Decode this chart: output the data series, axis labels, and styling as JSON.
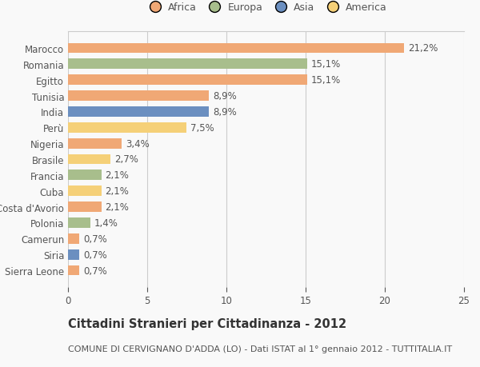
{
  "countries": [
    "Sierra Leone",
    "Siria",
    "Camerun",
    "Polonia",
    "Costa d'Avorio",
    "Cuba",
    "Francia",
    "Brasile",
    "Nigeria",
    "Perù",
    "India",
    "Tunisia",
    "Egitto",
    "Romania",
    "Marocco"
  ],
  "values": [
    0.7,
    0.7,
    0.7,
    1.4,
    2.1,
    2.1,
    2.1,
    2.7,
    3.4,
    7.5,
    8.9,
    8.9,
    15.1,
    15.1,
    21.2
  ],
  "labels": [
    "0,7%",
    "0,7%",
    "0,7%",
    "1,4%",
    "2,1%",
    "2,1%",
    "2,1%",
    "2,7%",
    "3,4%",
    "7,5%",
    "8,9%",
    "8,9%",
    "15,1%",
    "15,1%",
    "21,2%"
  ],
  "continents": [
    "Africa",
    "Asia",
    "Africa",
    "Europa",
    "Africa",
    "America",
    "Europa",
    "America",
    "Africa",
    "America",
    "Asia",
    "Africa",
    "Africa",
    "Europa",
    "Africa"
  ],
  "continent_colors": {
    "Africa": "#F0A875",
    "Europa": "#A8BE8C",
    "Asia": "#6B8FC0",
    "America": "#F5D078"
  },
  "legend_order": [
    "Africa",
    "Europa",
    "Asia",
    "America"
  ],
  "legend_colors": [
    "#F0A875",
    "#A8BE8C",
    "#6B8FC0",
    "#F5D078"
  ],
  "xlim": [
    0,
    25
  ],
  "xticks": [
    0,
    5,
    10,
    15,
    20,
    25
  ],
  "title": "Cittadini Stranieri per Cittadinanza - 2012",
  "subtitle": "COMUNE DI CERVIGNANO D'ADDA (LO) - Dati ISTAT al 1° gennaio 2012 - TUTTITALIA.IT",
  "background_color": "#f9f9f9",
  "bar_height": 0.65,
  "grid_color": "#cccccc",
  "text_color": "#555555",
  "label_fontsize": 8.5,
  "ytick_fontsize": 8.5,
  "xtick_fontsize": 8.5,
  "title_fontsize": 10.5,
  "subtitle_fontsize": 8.0,
  "legend_fontsize": 9.0
}
